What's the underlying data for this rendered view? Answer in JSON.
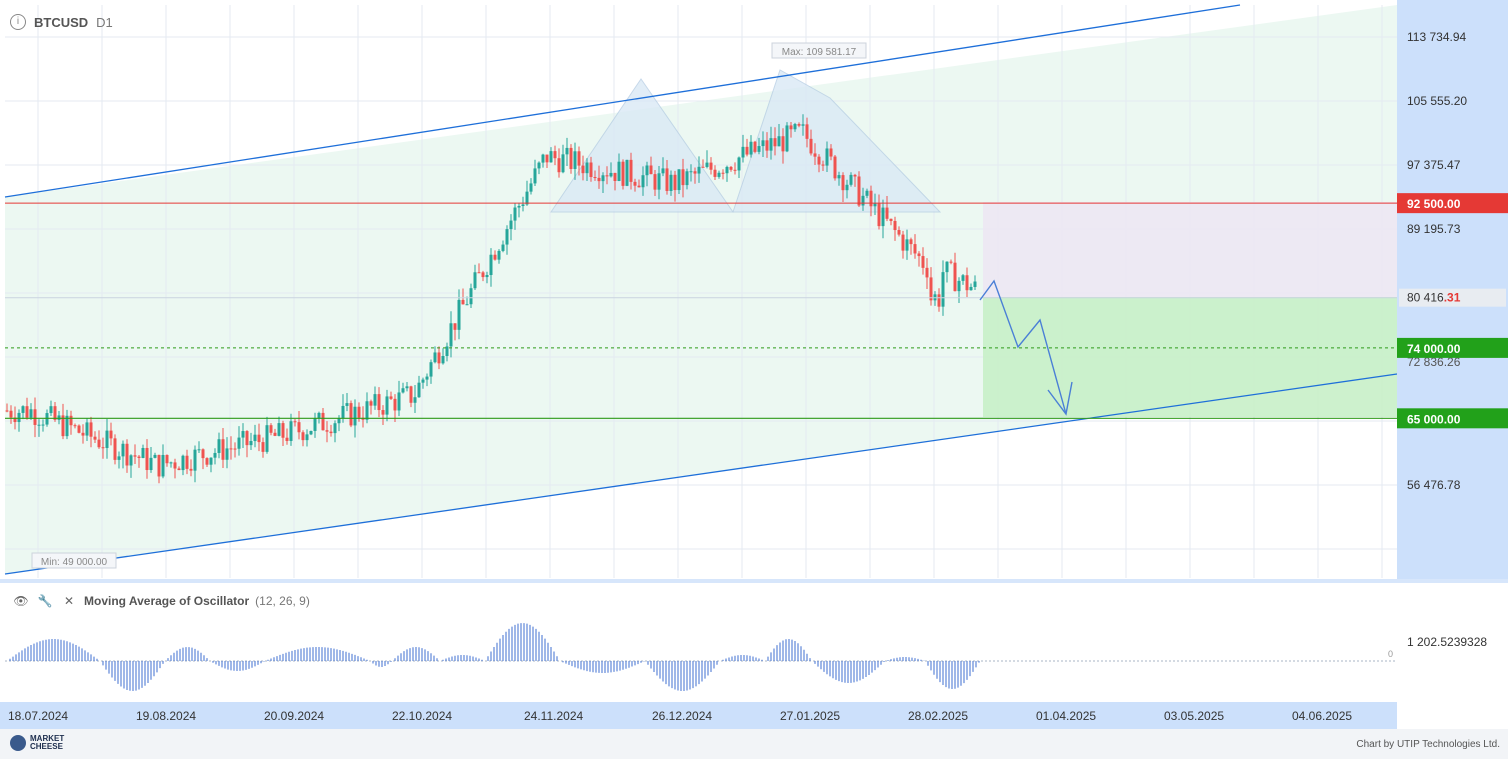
{
  "header": {
    "symbol": "BTCUSD",
    "timeframe": "D1"
  },
  "indicator": {
    "name": "Moving Average of Oscillator",
    "params": "(12, 26, 9)",
    "axis_value": "1 202.5239328",
    "zero_label": "0"
  },
  "footer": {
    "logo_line1": "MARKET",
    "logo_line2": "CHEESE",
    "credit": "Chart by UTIP Technologies Ltd."
  },
  "colors": {
    "up": "#26a69a",
    "down": "#ef5350",
    "channel": "#1e6fd9",
    "resistance": "#e53935",
    "support": "#2e9b1a",
    "axis_bg": "#cce0fb",
    "target_fill": "#c8f0c8",
    "pattern_fill": "#d8e8f5"
  },
  "chart_data": {
    "type": "candlestick",
    "symbol": "BTCUSD",
    "timeframe": "D1",
    "x_ticks": [
      "18.07.2024",
      "19.08.2024",
      "20.09.2024",
      "22.10.2024",
      "24.11.2024",
      "26.12.2024",
      "27.01.2025",
      "28.02.2025",
      "01.04.2025",
      "03.05.2025",
      "04.06.2025"
    ],
    "y_ticks": [
      "113 734.94",
      "105 555.20",
      "97 375.47",
      "89 195.73",
      "56 476.78"
    ],
    "ylim": [
      45000,
      118000
    ],
    "current_price": {
      "int": "80 416",
      "dec": ".31",
      "value": 80416.31
    },
    "levels": [
      {
        "label": "92 500.00",
        "value": 92500,
        "kind": "resistance"
      },
      {
        "label": "74 000.00",
        "value": 74000,
        "kind": "target"
      },
      {
        "label": "65 000.00",
        "value": 65000,
        "kind": "target"
      }
    ],
    "extremes": {
      "max_label": "Max: 109 581.17",
      "max": 109581.17,
      "min_label": "Min: 49 000.00",
      "min": 49000
    },
    "series": [
      {
        "x": [
          "18.07.2024",
          "19.08.2024",
          "20.09.2024",
          "22.10.2024",
          "24.11.2024",
          "26.12.2024",
          "27.01.2025",
          "28.02.2025"
        ],
        "values": [
          66000,
          59000,
          63000,
          68000,
          98500,
          95000,
          101500,
          84000
        ]
      }
    ]
  }
}
